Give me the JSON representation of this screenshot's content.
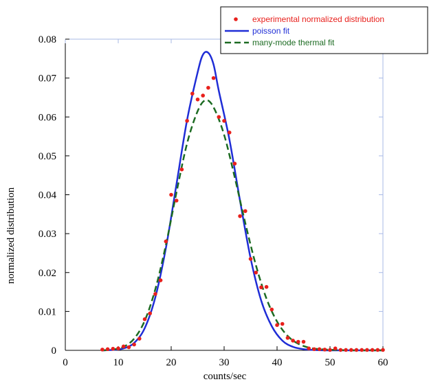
{
  "chart_data": {
    "type": "scatter",
    "title": "",
    "xlabel": "counts/sec",
    "ylabel": "normalized distribution",
    "xlim": [
      0,
      60
    ],
    "ylim": [
      0,
      0.08
    ],
    "x_ticks": [
      "0",
      "10",
      "20",
      "30",
      "40",
      "50",
      "60"
    ],
    "y_ticks": [
      "0",
      "0.01",
      "0.02",
      "0.03",
      "0.04",
      "0.05",
      "0.06",
      "0.07",
      "0.08"
    ],
    "grid": false,
    "legend_position": "top-right",
    "series": [
      {
        "name": "experimental normalized distribution",
        "kind": "points",
        "color": "#e8201c",
        "points": [
          [
            7,
            0.0002
          ],
          [
            8,
            0.0003
          ],
          [
            9,
            0.0004
          ],
          [
            10,
            0.0005
          ],
          [
            11,
            0.001
          ],
          [
            12,
            0.0008
          ],
          [
            13,
            0.0015
          ],
          [
            14,
            0.003
          ],
          [
            15,
            0.008
          ],
          [
            16,
            0.0095
          ],
          [
            17,
            0.0145
          ],
          [
            18,
            0.018
          ],
          [
            19,
            0.028
          ],
          [
            20,
            0.04
          ],
          [
            21,
            0.0385
          ],
          [
            22,
            0.0465
          ],
          [
            23,
            0.059
          ],
          [
            24,
            0.066
          ],
          [
            25,
            0.0645
          ],
          [
            26,
            0.0655
          ],
          [
            27,
            0.0675
          ],
          [
            28,
            0.07
          ],
          [
            29,
            0.06
          ],
          [
            30,
            0.059
          ],
          [
            31,
            0.056
          ],
          [
            32,
            0.048
          ],
          [
            33,
            0.0345
          ],
          [
            34,
            0.0358
          ],
          [
            35,
            0.0235
          ],
          [
            36,
            0.02
          ],
          [
            37,
            0.0162
          ],
          [
            38,
            0.0163
          ],
          [
            39,
            0.0105
          ],
          [
            40,
            0.0065
          ],
          [
            41,
            0.0068
          ],
          [
            42,
            0.0032
          ],
          [
            43,
            0.0025
          ],
          [
            44,
            0.0022
          ],
          [
            45,
            0.0022
          ],
          [
            46,
            0.0005
          ],
          [
            47,
            0.0003
          ],
          [
            48,
            0.0003
          ],
          [
            49,
            0.0002
          ],
          [
            50,
            0.0001
          ],
          [
            51,
            0.0005
          ],
          [
            52,
            0.0001
          ],
          [
            53,
            0.0001
          ],
          [
            54,
            0.0001
          ],
          [
            55,
            0.0001
          ],
          [
            56,
            0.0001
          ],
          [
            57,
            0.0001
          ],
          [
            58,
            0.0001
          ],
          [
            59,
            0.0001
          ],
          [
            60,
            0.0001
          ]
        ]
      },
      {
        "name": "poisson fit",
        "kind": "line",
        "color": "#1f2dd6",
        "dash": "solid",
        "points": [
          [
            7,
            0
          ],
          [
            9,
            0.0001
          ],
          [
            11,
            0.0005
          ],
          [
            13,
            0.0019
          ],
          [
            15,
            0.0057
          ],
          [
            17,
            0.0136
          ],
          [
            19,
            0.0263
          ],
          [
            21,
            0.0427
          ],
          [
            23,
            0.0592
          ],
          [
            25,
            0.0715
          ],
          [
            26,
            0.076
          ],
          [
            27,
            0.0765
          ],
          [
            28,
            0.0735
          ],
          [
            29,
            0.0667
          ],
          [
            31,
            0.0542
          ],
          [
            33,
            0.0385
          ],
          [
            35,
            0.0237
          ],
          [
            37,
            0.0128
          ],
          [
            39,
            0.0062
          ],
          [
            41,
            0.0025
          ],
          [
            43,
            0.0009
          ],
          [
            45,
            0.0003
          ],
          [
            47,
            0.0001
          ],
          [
            50,
            0
          ],
          [
            60,
            0
          ]
        ]
      },
      {
        "name": "many-mode thermal fit",
        "kind": "line",
        "color": "#1c6b22",
        "dash": "dashed",
        "points": [
          [
            7,
            0
          ],
          [
            9,
            0.0002
          ],
          [
            11,
            0.0009
          ],
          [
            13,
            0.003
          ],
          [
            15,
            0.0076
          ],
          [
            17,
            0.0157
          ],
          [
            19,
            0.0271
          ],
          [
            21,
            0.0406
          ],
          [
            23,
            0.0532
          ],
          [
            25,
            0.0615
          ],
          [
            26.5,
            0.0643
          ],
          [
            28,
            0.0625
          ],
          [
            30,
            0.0554
          ],
          [
            32,
            0.0445
          ],
          [
            34,
            0.0327
          ],
          [
            36,
            0.0219
          ],
          [
            38,
            0.0133
          ],
          [
            40,
            0.0074
          ],
          [
            42,
            0.0037
          ],
          [
            44,
            0.0017
          ],
          [
            46,
            0.0007
          ],
          [
            48,
            0.0003
          ],
          [
            51,
            0.0001
          ],
          [
            55,
            0
          ],
          [
            60,
            0
          ]
        ]
      }
    ]
  }
}
